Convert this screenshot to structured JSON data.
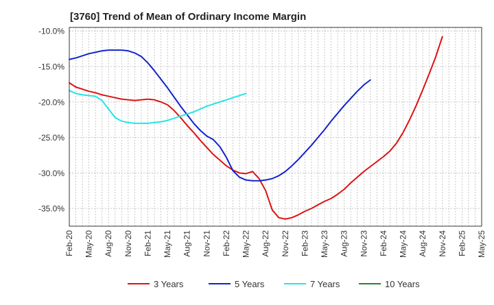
{
  "chart_data": {
    "type": "line",
    "title": "[3760]  Trend of Mean of Ordinary Income Margin",
    "xlabel": "",
    "ylabel": "",
    "x_ticks": [
      "Feb-20",
      "May-20",
      "Aug-20",
      "Nov-20",
      "Feb-21",
      "May-21",
      "Aug-21",
      "Nov-21",
      "Feb-22",
      "May-22",
      "Aug-22",
      "Nov-22",
      "Feb-23",
      "May-23",
      "Aug-23",
      "Nov-23",
      "Feb-24",
      "May-24",
      "Aug-24",
      "Nov-24",
      "Feb-25",
      "May-25"
    ],
    "y_ticks": [
      "-10.0%",
      "-15.0%",
      "-20.0%",
      "-25.0%",
      "-30.0%",
      "-35.0%"
    ],
    "ylim": [
      -37.5,
      -9.5
    ],
    "grid": true,
    "legend_position": "bottom",
    "series": [
      {
        "name": "3 Years",
        "color": "#dd1111",
        "points": [
          [
            "Feb-20",
            -17.3
          ],
          [
            "Mar-20",
            -17.9
          ],
          [
            "Apr-20",
            -18.2
          ],
          [
            "May-20",
            -18.5
          ],
          [
            "Jun-20",
            -18.7
          ],
          [
            "Jul-20",
            -19.0
          ],
          [
            "Aug-20",
            -19.2
          ],
          [
            "Sep-20",
            -19.4
          ],
          [
            "Oct-20",
            -19.6
          ],
          [
            "Nov-20",
            -19.7
          ],
          [
            "Dec-20",
            -19.8
          ],
          [
            "Jan-21",
            -19.7
          ],
          [
            "Feb-21",
            -19.6
          ],
          [
            "Mar-21",
            -19.7
          ],
          [
            "Apr-21",
            -20.0
          ],
          [
            "May-21",
            -20.4
          ],
          [
            "Jun-21",
            -21.2
          ],
          [
            "Jul-21",
            -22.2
          ],
          [
            "Aug-21",
            -23.3
          ],
          [
            "Sep-21",
            -24.3
          ],
          [
            "Oct-21",
            -25.4
          ],
          [
            "Nov-21",
            -26.4
          ],
          [
            "Dec-21",
            -27.4
          ],
          [
            "Jan-22",
            -28.2
          ],
          [
            "Feb-22",
            -29.0
          ],
          [
            "Mar-22",
            -29.6
          ],
          [
            "Apr-22",
            -30.0
          ],
          [
            "May-22",
            -30.1
          ],
          [
            "Jun-22",
            -29.8
          ],
          [
            "Jul-22",
            -30.8
          ],
          [
            "Aug-22",
            -32.5
          ],
          [
            "Sep-22",
            -35.2
          ],
          [
            "Oct-22",
            -36.3
          ],
          [
            "Nov-22",
            -36.5
          ],
          [
            "Dec-22",
            -36.3
          ],
          [
            "Jan-23",
            -35.9
          ],
          [
            "Feb-23",
            -35.4
          ],
          [
            "Mar-23",
            -35.0
          ],
          [
            "Apr-23",
            -34.5
          ],
          [
            "May-23",
            -34.0
          ],
          [
            "Jun-23",
            -33.6
          ],
          [
            "Jul-23",
            -33.0
          ],
          [
            "Aug-23",
            -32.3
          ],
          [
            "Sep-23",
            -31.4
          ],
          [
            "Oct-23",
            -30.6
          ],
          [
            "Nov-23",
            -29.8
          ],
          [
            "Dec-23",
            -29.1
          ],
          [
            "Jan-24",
            -28.4
          ],
          [
            "Feb-24",
            -27.7
          ],
          [
            "Mar-24",
            -26.9
          ],
          [
            "Apr-24",
            -25.8
          ],
          [
            "May-24",
            -24.3
          ],
          [
            "Jun-24",
            -22.5
          ],
          [
            "Jul-24",
            -20.5
          ],
          [
            "Aug-24",
            -18.3
          ],
          [
            "Sep-24",
            -16.0
          ],
          [
            "Oct-24",
            -13.6
          ],
          [
            "Nov-24",
            -10.8
          ]
        ]
      },
      {
        "name": "5 Years",
        "color": "#1122cc",
        "points": [
          [
            "Feb-20",
            -14.0
          ],
          [
            "Mar-20",
            -13.8
          ],
          [
            "Apr-20",
            -13.5
          ],
          [
            "May-20",
            -13.2
          ],
          [
            "Jun-20",
            -13.0
          ],
          [
            "Jul-20",
            -12.8
          ],
          [
            "Aug-20",
            -12.7
          ],
          [
            "Sep-20",
            -12.7
          ],
          [
            "Oct-20",
            -12.7
          ],
          [
            "Nov-20",
            -12.8
          ],
          [
            "Dec-20",
            -13.1
          ],
          [
            "Jan-21",
            -13.6
          ],
          [
            "Feb-21",
            -14.5
          ],
          [
            "Mar-21",
            -15.6
          ],
          [
            "Apr-21",
            -16.8
          ],
          [
            "May-21",
            -18.0
          ],
          [
            "Jun-21",
            -19.3
          ],
          [
            "Jul-21",
            -20.6
          ],
          [
            "Aug-21",
            -21.8
          ],
          [
            "Sep-21",
            -23.0
          ],
          [
            "Oct-21",
            -24.0
          ],
          [
            "Nov-21",
            -24.8
          ],
          [
            "Dec-21",
            -25.3
          ],
          [
            "Jan-22",
            -26.3
          ],
          [
            "Feb-22",
            -27.8
          ],
          [
            "Mar-22",
            -29.7
          ],
          [
            "Apr-22",
            -30.6
          ],
          [
            "May-22",
            -31.0
          ],
          [
            "Jun-22",
            -31.1
          ],
          [
            "Jul-22",
            -31.1
          ],
          [
            "Aug-22",
            -31.0
          ],
          [
            "Sep-22",
            -30.8
          ],
          [
            "Oct-22",
            -30.4
          ],
          [
            "Nov-22",
            -29.8
          ],
          [
            "Dec-22",
            -29.0
          ],
          [
            "Jan-23",
            -28.1
          ],
          [
            "Feb-23",
            -27.1
          ],
          [
            "Mar-23",
            -26.1
          ],
          [
            "Apr-23",
            -25.0
          ],
          [
            "May-23",
            -23.9
          ],
          [
            "Jun-23",
            -22.7
          ],
          [
            "Jul-23",
            -21.6
          ],
          [
            "Aug-23",
            -20.5
          ],
          [
            "Sep-23",
            -19.5
          ],
          [
            "Oct-23",
            -18.5
          ],
          [
            "Nov-23",
            -17.6
          ],
          [
            "Dec-23",
            -16.9
          ]
        ]
      },
      {
        "name": "7 Years",
        "color": "#22e5e5",
        "points": [
          [
            "Feb-20",
            -18.4
          ],
          [
            "Mar-20",
            -18.8
          ],
          [
            "Apr-20",
            -19.0
          ],
          [
            "May-20",
            -19.1
          ],
          [
            "Jun-20",
            -19.2
          ],
          [
            "Jul-20",
            -19.8
          ],
          [
            "Aug-20",
            -21.0
          ],
          [
            "Sep-20",
            -22.2
          ],
          [
            "Oct-20",
            -22.7
          ],
          [
            "Nov-20",
            -22.9
          ],
          [
            "Dec-20",
            -23.0
          ],
          [
            "Jan-21",
            -23.0
          ],
          [
            "Feb-21",
            -23.0
          ],
          [
            "Mar-21",
            -22.9
          ],
          [
            "Apr-21",
            -22.8
          ],
          [
            "May-21",
            -22.6
          ],
          [
            "Jun-21",
            -22.3
          ],
          [
            "Jul-21",
            -22.0
          ],
          [
            "Aug-21",
            -21.7
          ],
          [
            "Sep-21",
            -21.4
          ],
          [
            "Oct-21",
            -21.0
          ],
          [
            "Nov-21",
            -20.6
          ],
          [
            "Dec-21",
            -20.3
          ],
          [
            "Jan-22",
            -20.0
          ],
          [
            "Feb-22",
            -19.7
          ],
          [
            "Mar-22",
            -19.4
          ],
          [
            "Apr-22",
            -19.1
          ],
          [
            "May-22",
            -18.8
          ]
        ]
      },
      {
        "name": "10 Years",
        "color": "#228822",
        "points": []
      }
    ]
  }
}
